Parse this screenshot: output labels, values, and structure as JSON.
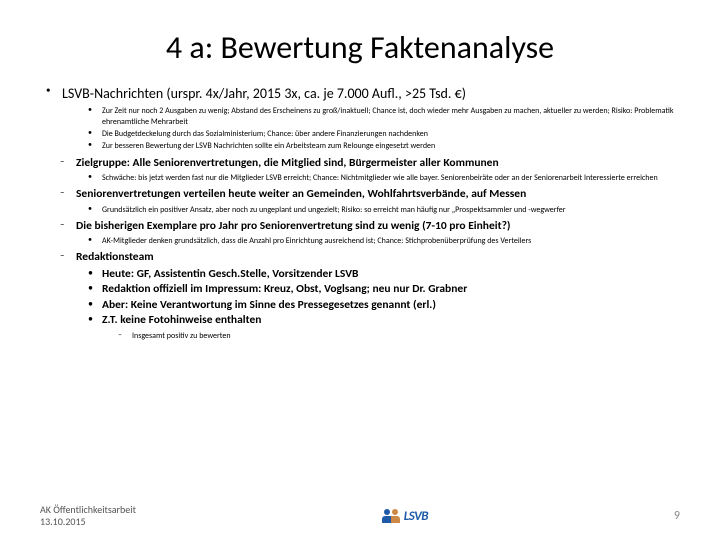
{
  "title": "4 a: Bewertung Faktenanalyse",
  "main": {
    "heading": "LSVB-Nachrichten (urspr. 4x/Jahr, 2015 3x, ca. je 7.000 Aufl., >25 Tsd. €)",
    "sub": [
      "Zur Zeit nur noch 2 Ausgaben zu wenig; Abstand des Erscheinens zu groß/inaktuell; Chance ist, doch wieder mehr Ausgaben zu machen, aktueller zu werden; Risiko: Problematik ehrenamtliche Mehrarbeit",
      "Die Budgetdeckelung durch das Sozialministerium; Chance: über andere Finanzierungen nachdenken",
      "Zur besseren Bewertung der LSVB Nachrichten sollte ein Arbeitsteam zum Relounge eingesetzt werden"
    ]
  },
  "sections": [
    {
      "heading": "Zielgruppe: Alle Seniorenvertretungen, die Mitglied sind, Bürgermeister aller Kommunen",
      "points": [
        "Schwäche: bis jetzt werden fast nur die Mitglieder LSVB erreicht; Chance: Nichtmitglieder wie alle bayer. Seniorenbeiräte oder an der Seniorenarbeit Interessierte erreichen"
      ]
    },
    {
      "heading": "Seniorenvertretungen verteilen heute weiter an Gemeinden, Wohlfahrtsverbände, auf Messen",
      "points": [
        "Grundsätzlich ein positiver Ansatz, aber noch zu ungeplant und ungezielt; Risiko: so erreicht man häufig nur „Prospektsammler und -wegwerfer"
      ]
    },
    {
      "heading": "Die bisherigen Exemplare pro Jahr pro Seniorenvertretung sind zu wenig (7-10 pro Einheit?)",
      "points": [
        "AK-Mitglieder denken grundsätzlich, dass die Anzahl pro Einrichtung ausreichend ist; Chance: Stichprobenüberprüfung des Verteilers"
      ]
    }
  ],
  "redaktion": {
    "heading": "Redaktionsteam",
    "items": [
      "Heute: GF, Assistentin Gesch.Stelle, Vorsitzender LSVB",
      "Redaktion offiziell im Impressum: Kreuz, Obst, Voglsang; neu nur Dr. Grabner",
      "Aber: Keine Verantwortung im Sinne des Pressegesetzes genannt (erl.)",
      "Z.T. keine Fotohinweise enthalten"
    ],
    "note": "Insgesamt positiv zu bewerten"
  },
  "footer": {
    "left1": "AK Öffentlichkeitsarbeit",
    "left2": "13.10.2015",
    "logo_text": "LSVB",
    "page": "9"
  },
  "colors": {
    "title": "#000000",
    "text": "#000000",
    "footer": "#555555",
    "page_num": "#888888",
    "logo_blue": "#1e5aa8",
    "background": "#ffffff"
  }
}
